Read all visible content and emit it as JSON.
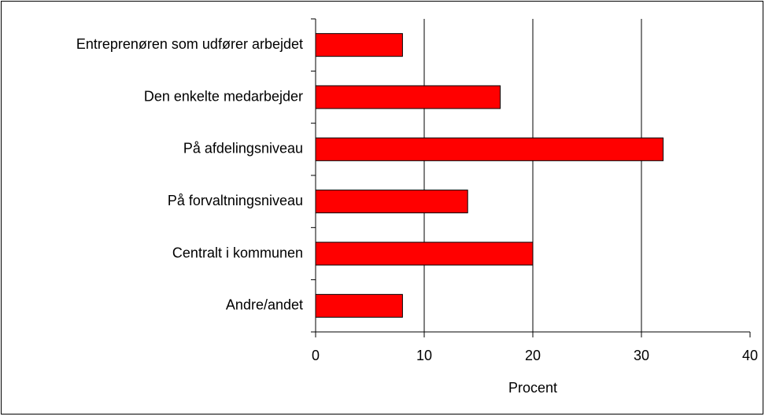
{
  "chart_data": {
    "type": "hbar",
    "categories": [
      "Entreprenøren som udfører arbejdet",
      "Den enkelte medarbejder",
      "På afdelingsniveau",
      "På forvaltningsniveau",
      "Centralt i kommunen",
      "Andre/andet"
    ],
    "values": [
      8,
      17,
      32,
      14,
      20,
      8
    ],
    "color": "#ff0000",
    "xlabel": "Procent",
    "xlim": [
      0,
      40
    ],
    "xticks": [
      0,
      10,
      20,
      30,
      40
    ],
    "grid": true
  }
}
